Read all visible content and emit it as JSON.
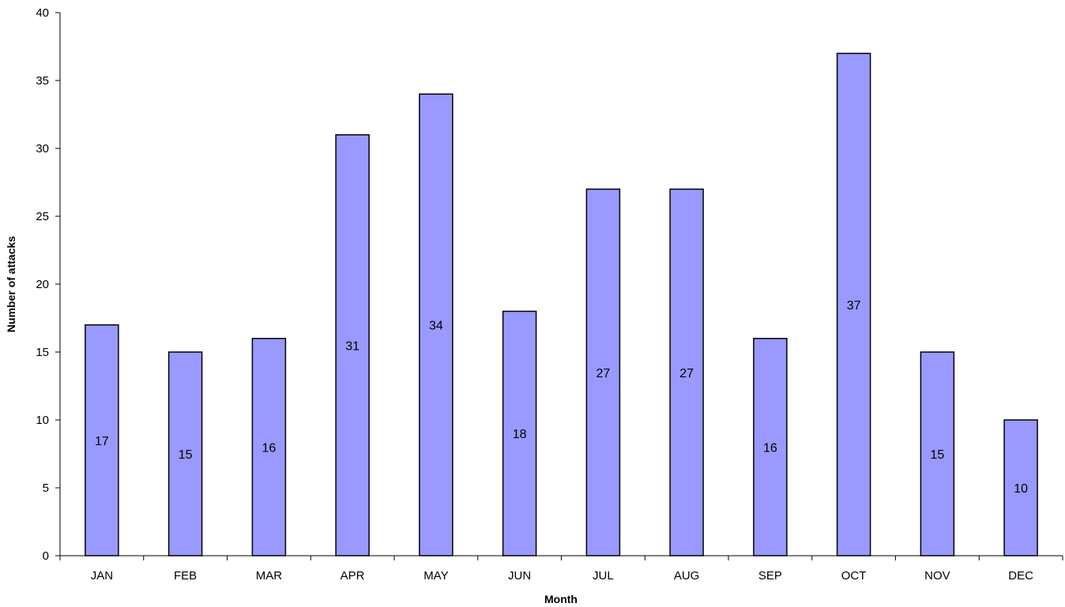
{
  "chart_data": {
    "type": "bar",
    "title": "",
    "xlabel": "Month",
    "ylabel": "Number of attacks",
    "categories": [
      "JAN",
      "FEB",
      "MAR",
      "APR",
      "MAY",
      "JUN",
      "JUL",
      "AUG",
      "SEP",
      "OCT",
      "NOV",
      "DEC"
    ],
    "values": [
      17,
      15,
      16,
      31,
      34,
      18,
      27,
      27,
      16,
      37,
      15,
      10
    ],
    "ylim": [
      0,
      40
    ],
    "yticks": [
      0,
      5,
      10,
      15,
      20,
      25,
      30,
      35,
      40
    ],
    "grid": false,
    "legend": "none",
    "colors": {
      "bar_fill": "#9999ff",
      "bar_stroke": "#000000",
      "axis": "#000000"
    }
  }
}
